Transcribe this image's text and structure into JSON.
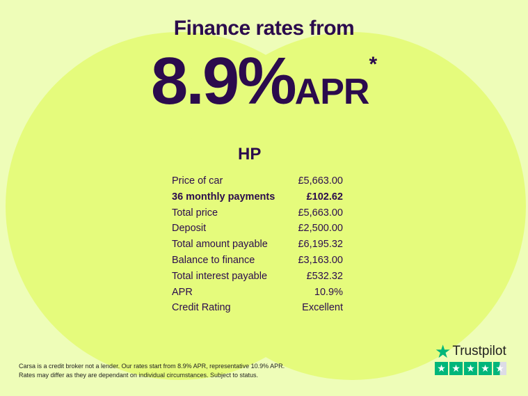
{
  "header": {
    "title": "Finance rates from",
    "rate": "8.9%",
    "rate_suffix": "APR",
    "asterisk": "*"
  },
  "finance": {
    "type": "HP",
    "rows": [
      {
        "label": "Price of car",
        "value": "£5,663.00",
        "bold": false
      },
      {
        "label": "36 monthly payments",
        "value": "£102.62",
        "bold": true
      },
      {
        "label": "Total price",
        "value": "£5,663.00",
        "bold": false
      },
      {
        "label": "Deposit",
        "value": "£2,500.00",
        "bold": false
      },
      {
        "label": "Total amount payable",
        "value": "£6,195.32",
        "bold": false
      },
      {
        "label": "Balance to finance",
        "value": "£3,163.00",
        "bold": false
      },
      {
        "label": "Total interest payable",
        "value": "£532.32",
        "bold": false
      },
      {
        "label": "APR",
        "value": "10.9%",
        "bold": false
      },
      {
        "label": "Credit Rating",
        "value": "Excellent",
        "bold": false
      }
    ]
  },
  "disclaimer": {
    "line1": "Carsa is a credit broker not a lender. Our rates start from 8.9% APR, representative 10.9% APR.",
    "line2": "Rates may differ as they are dependant on individual circumstances. Subject to status."
  },
  "trustpilot": {
    "label": "Trustpilot",
    "rating_stars": 4.5,
    "max_stars": 5,
    "icon": "star-icon"
  },
  "colors": {
    "background": "#eefdb8",
    "circles": "#e5fb7c",
    "text": "#2b0b4d",
    "trustpilot_green": "#00b67a"
  }
}
